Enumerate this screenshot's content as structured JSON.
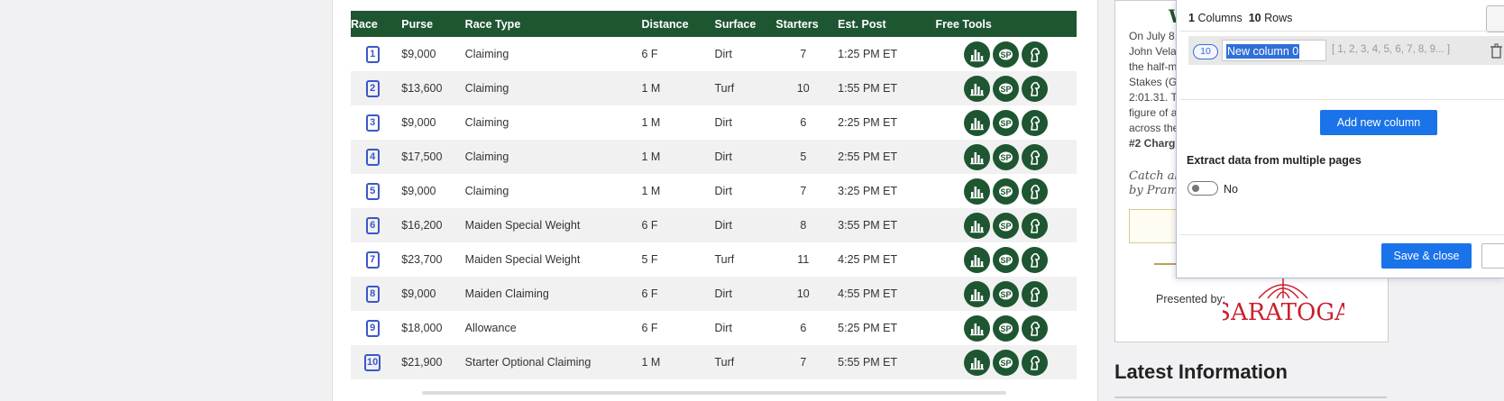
{
  "table": {
    "headers": [
      "Race",
      "Purse",
      "Race Type",
      "Distance",
      "Surface",
      "Starters",
      "Est. Post",
      "Free Tools"
    ],
    "rows": [
      {
        "race": "1",
        "purse": "$9,000",
        "type": "Claiming",
        "distance": "6 F",
        "surface": "Dirt",
        "starters": "7",
        "post": "1:25 PM ET"
      },
      {
        "race": "2",
        "purse": "$13,600",
        "type": "Claiming",
        "distance": "1 M",
        "surface": "Turf",
        "starters": "10",
        "post": "1:55 PM ET"
      },
      {
        "race": "3",
        "purse": "$9,000",
        "type": "Claiming",
        "distance": "1 M",
        "surface": "Dirt",
        "starters": "6",
        "post": "2:25 PM ET"
      },
      {
        "race": "4",
        "purse": "$17,500",
        "type": "Claiming",
        "distance": "1 M",
        "surface": "Dirt",
        "starters": "5",
        "post": "2:55 PM ET"
      },
      {
        "race": "5",
        "purse": "$9,000",
        "type": "Claiming",
        "distance": "1 M",
        "surface": "Dirt",
        "starters": "7",
        "post": "3:25 PM ET"
      },
      {
        "race": "6",
        "purse": "$16,200",
        "type": "Maiden Special Weight",
        "distance": "6 F",
        "surface": "Dirt",
        "starters": "8",
        "post": "3:55 PM ET"
      },
      {
        "race": "7",
        "purse": "$23,700",
        "type": "Maiden Special Weight",
        "distance": "5 F",
        "surface": "Turf",
        "starters": "11",
        "post": "4:25 PM ET"
      },
      {
        "race": "8",
        "purse": "$9,000",
        "type": "Maiden Claiming",
        "distance": "6 F",
        "surface": "Dirt",
        "starters": "10",
        "post": "4:55 PM ET"
      },
      {
        "race": "9",
        "purse": "$18,000",
        "type": "Allowance",
        "distance": "6 F",
        "surface": "Dirt",
        "starters": "6",
        "post": "5:25 PM ET"
      },
      {
        "race": "10",
        "purse": "$21,900",
        "type": "Starter Optional Claiming",
        "distance": "1 M",
        "surface": "Turf",
        "starters": "7",
        "post": "5:55 PM ET"
      }
    ],
    "tool_icons": [
      "bar-chart-icon",
      "sp-icon",
      "horse-head-icon"
    ],
    "accent_color": "#1e5631"
  },
  "sidebar": {
    "title_fragment": "W",
    "text_lines": [
      "On July 8,",
      "John Vela",
      "the half-m",
      "Stakes (G",
      "2:01.31. T",
      "figure of a",
      "across the",
      "#2 Charg"
    ],
    "catch_lines": [
      "Catch all",
      "by Pram"
    ],
    "presented_by": "Presented by:",
    "sponsor_logo": "SARATOGA",
    "latest_heading": "Latest Information"
  },
  "extension": {
    "columns_count": "1",
    "columns_label": "Columns",
    "rows_count": "10",
    "rows_label": "Rows",
    "column": {
      "badge": "10",
      "name": "New column 0",
      "preview": "[ 1, 2, 3, 4, 5, 6, 7, 8, 9... ]"
    },
    "add_column_label": "Add new column",
    "multi_page_label": "Extract data from multiple pages",
    "toggle_state": "No",
    "save_close_label": "Save & close",
    "button_color": "#1a73e8"
  }
}
